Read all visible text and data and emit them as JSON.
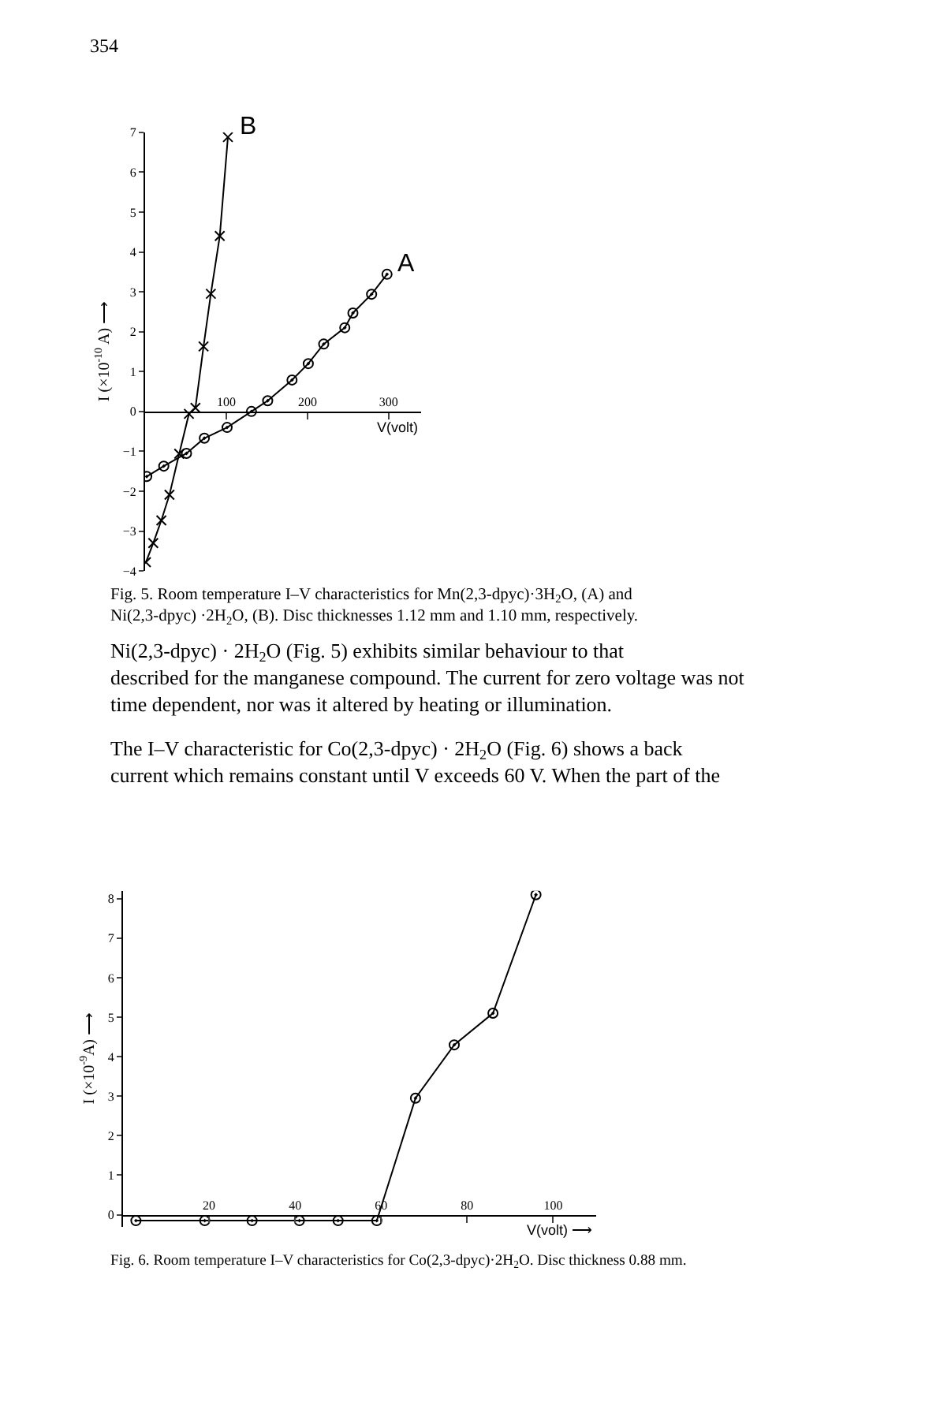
{
  "chart_data": [
    {
      "type": "line",
      "xlabel": "V(volt)",
      "ylabel": "I (×10$^{-10}$ A) ⟶",
      "xlim": [
        0,
        340
      ],
      "ylim": [
        -4,
        7
      ],
      "xticks": [
        100,
        200,
        300
      ],
      "yticks": [
        -4,
        -3,
        -2,
        -1,
        0,
        1,
        2,
        3,
        4,
        5,
        6,
        7
      ],
      "grid": false,
      "legend": false,
      "line_style": "solid",
      "series": [
        {
          "name": "A",
          "color": "#000000",
          "marker": "circle",
          "x": [
            2,
            23,
            51,
            73,
            101,
            131,
            151,
            181,
            201,
            220,
            246,
            256,
            279,
            298
          ],
          "values": [
            -1.63,
            -1.37,
            -1.05,
            -0.67,
            -0.4,
            0,
            0.27,
            0.79,
            1.2,
            1.69,
            2.1,
            2.47,
            2.94,
            3.44
          ]
        },
        {
          "name": "B",
          "color": "#000000",
          "marker": "cross",
          "x": [
            1,
            10,
            20,
            30,
            42,
            54,
            62,
            72,
            81,
            92,
            102
          ],
          "values": [
            -3.78,
            -3.3,
            -2.73,
            -2.09,
            -1.06,
            -0.06,
            0.09,
            1.63,
            2.95,
            4.4,
            6.88
          ]
        }
      ],
      "annotations": [
        "354",
        "Fig. 5. Room temperature I–V characteristics for Mn(2,3-dpyc)·3H$_{2}$O, (A) and Ni(2,3-dpyc) ·2H$_{2}$O, (B). Disc thicknesses 1.12 mm and 1.10 mm, respectively.",
        "Ni(2,3-dpyc) · 2H$_{2}$O (Fig. 5) exhibits similar behaviour to that described for the manganese compound. The current for zero voltage was not time dependent, nor was it altered by heating or illumination.",
        "The I–V characteristic for Co(2,3-dpyc) · 2H$_{2}$O (Fig. 6) shows a back current which remains constant until V exceeds 60 V. When the part of the"
      ]
    },
    {
      "type": "line",
      "xlabel": "V(volt) ⟶",
      "ylabel": "I (×10$^{-9}$A) ⟶",
      "xlim": [
        0,
        110
      ],
      "ylim": [
        -0.3,
        8.2
      ],
      "xticks": [
        20,
        40,
        60,
        80,
        100
      ],
      "yticks": [
        0,
        1,
        2,
        3,
        4,
        5,
        6,
        7,
        8
      ],
      "grid": false,
      "legend": false,
      "marker": "circle",
      "line_style": "solid",
      "series": [
        {
          "color": "#000000",
          "x": [
            3,
            19,
            30,
            41,
            50,
            59,
            68,
            77,
            86,
            96
          ],
          "values": [
            -0.15,
            -0.15,
            -0.15,
            -0.15,
            -0.15,
            -0.15,
            2.95,
            4.3,
            5.1,
            8.1
          ]
        }
      ],
      "annotations": [
        "Fig. 6. Room temperature I–V characteristics for Co(2,3-dpyc)·2H$_{2}$O. Disc thickness 0.88 mm."
      ]
    }
  ]
}
